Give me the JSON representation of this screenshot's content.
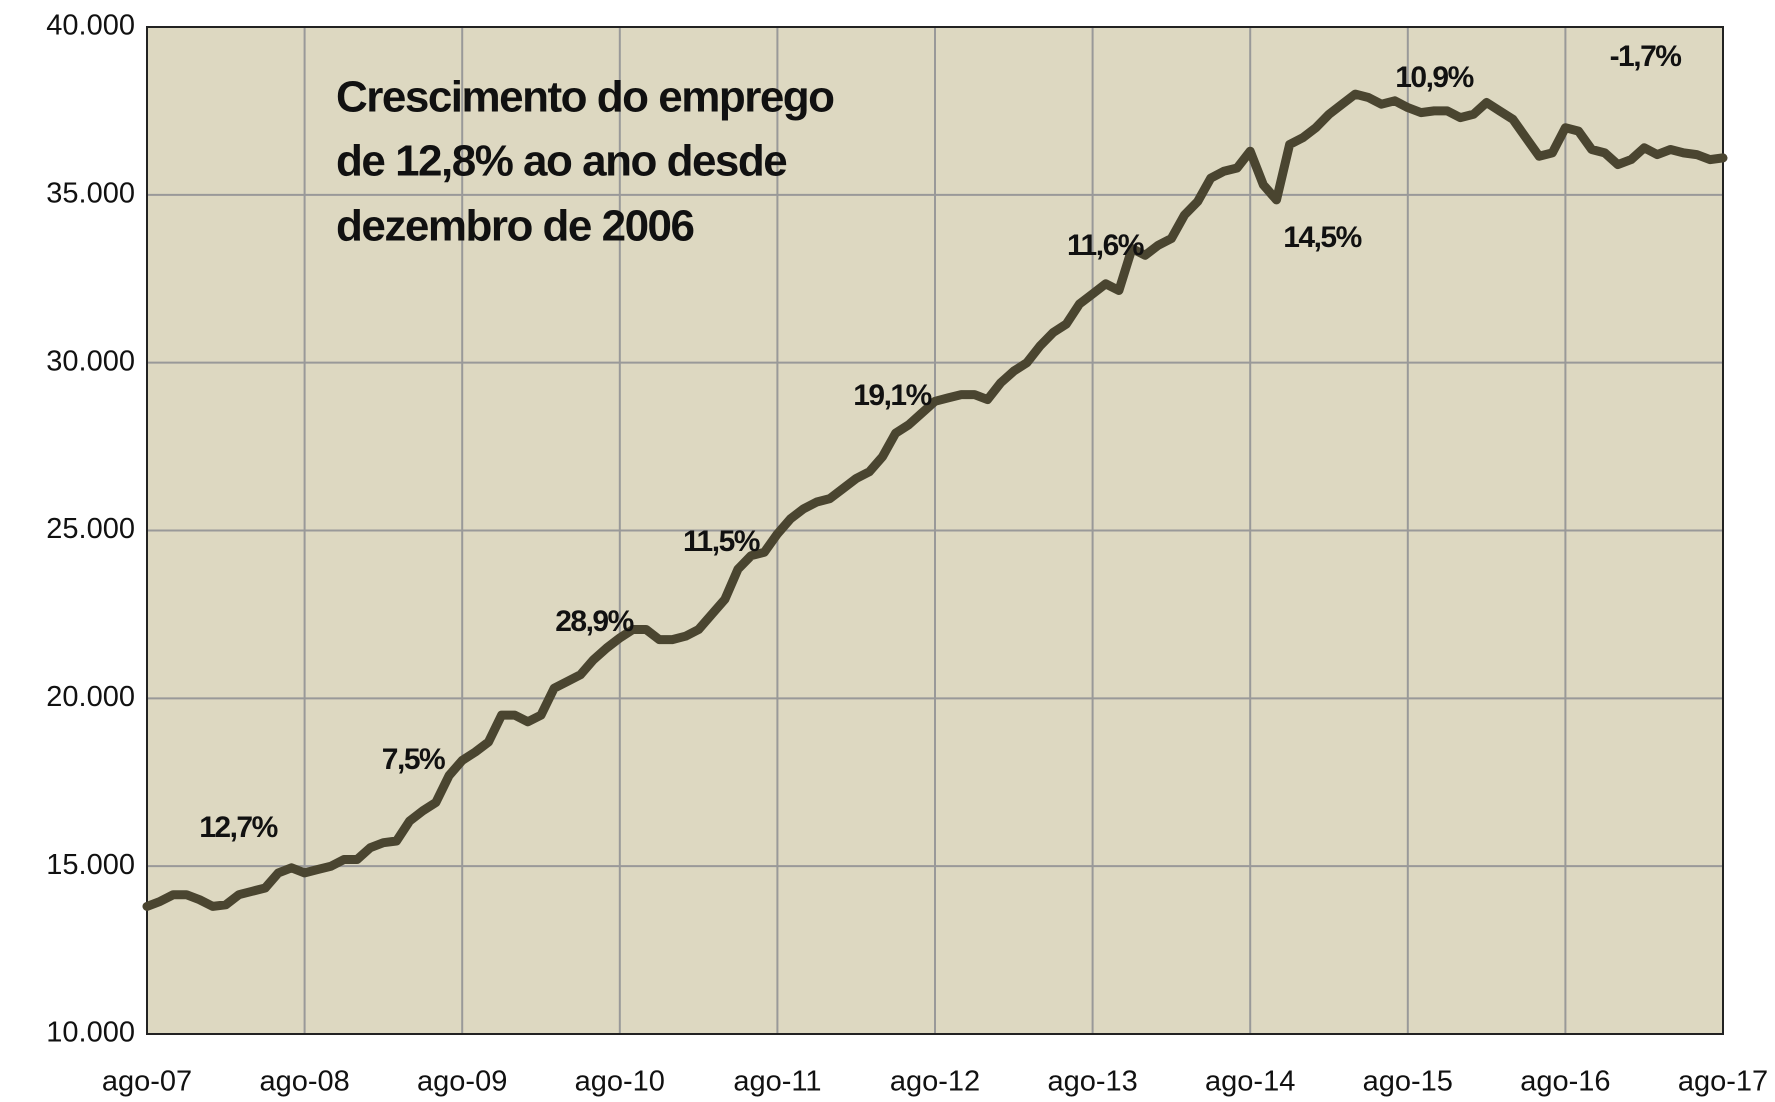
{
  "chart_data": {
    "type": "line",
    "title": [
      "Crescimento do emprego",
      "de 12,8% ao ano desde",
      "dezembro de 2006"
    ],
    "categories": [
      "ago-07",
      null,
      null,
      null,
      null,
      null,
      null,
      null,
      null,
      null,
      null,
      null,
      "ago-08",
      null,
      null,
      null,
      null,
      null,
      null,
      null,
      null,
      null,
      null,
      null,
      "ago-09",
      null,
      null,
      null,
      null,
      null,
      null,
      null,
      null,
      null,
      null,
      null,
      "ago-10",
      null,
      null,
      null,
      null,
      null,
      null,
      null,
      null,
      null,
      null,
      null,
      "ago-11",
      null,
      null,
      null,
      null,
      null,
      null,
      null,
      null,
      null,
      null,
      null,
      "ago-12",
      null,
      null,
      null,
      null,
      null,
      null,
      null,
      null,
      null,
      null,
      null,
      "ago-13",
      null,
      null,
      null,
      null,
      null,
      null,
      null,
      null,
      null,
      null,
      null,
      "ago-14",
      null,
      null,
      null,
      null,
      null,
      null,
      null,
      null,
      null,
      null,
      null,
      "ago-15",
      null,
      null,
      null,
      null,
      null,
      null,
      null,
      null,
      null,
      null,
      null,
      "ago-16",
      null,
      null,
      null,
      null,
      null,
      null,
      null,
      null,
      null,
      null,
      null,
      "ago-17"
    ],
    "values": [
      13800,
      13950,
      14150,
      14150,
      14000,
      13800,
      13850,
      14150,
      14250,
      14350,
      14800,
      14950,
      14800,
      14900,
      15000,
      15200,
      15200,
      15550,
      15700,
      15750,
      16350,
      16650,
      16900,
      17700,
      18150,
      18400,
      18700,
      19500,
      19500,
      19300,
      19500,
      20300,
      20500,
      20700,
      21150,
      21500,
      21800,
      22050,
      22050,
      21750,
      21750,
      21850,
      22050,
      22500,
      22950,
      23850,
      24250,
      24350,
      24900,
      25350,
      25650,
      25850,
      25950,
      26250,
      26550,
      26750,
      27200,
      27900,
      28150,
      28500,
      28850,
      28950,
      29050,
      29050,
      28900,
      29400,
      29750,
      30000,
      30500,
      30900,
      31150,
      31750,
      32050,
      32350,
      32150,
      33400,
      33200,
      33500,
      33700,
      34400,
      34800,
      35500,
      35700,
      35800,
      36300,
      35300,
      34850,
      36500,
      36700,
      37000,
      37400,
      37700,
      38000,
      37900,
      37700,
      37800,
      37600,
      37450,
      37500,
      37500,
      37300,
      37400,
      37750,
      37500,
      37250,
      36700,
      36150,
      36250,
      37000,
      36900,
      36350,
      36250,
      35900,
      36050,
      36400,
      36200,
      36350,
      36250,
      36200,
      36050,
      36100
    ],
    "color": "#4a4530",
    "annotations": [
      "12,7%",
      "7,5%",
      "28,9%",
      "11,5%",
      "19,1%",
      "11,6%",
      "14,5%",
      "10,9%",
      "-1,7%"
    ],
    "ylim": [
      10000,
      40000
    ],
    "yticks": [
      {
        "value": 10000,
        "label": "10.000"
      },
      {
        "value": 15000,
        "label": "15.000"
      },
      {
        "value": 20000,
        "label": "20.000"
      },
      {
        "value": 25000,
        "label": "25.000"
      },
      {
        "value": 30000,
        "label": "30.000"
      },
      {
        "value": 35000,
        "label": "35.000"
      },
      {
        "value": 40000,
        "label": "40.000"
      }
    ],
    "grid": true
  }
}
